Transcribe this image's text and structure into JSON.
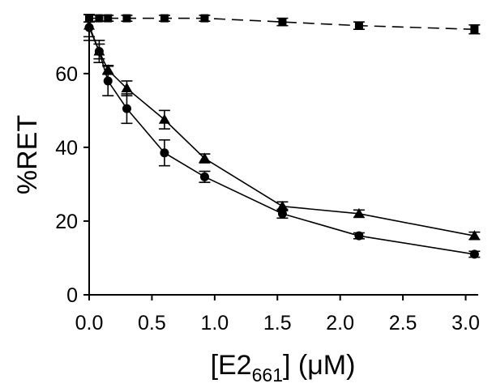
{
  "chart_data": {
    "type": "line",
    "xlabel": {
      "prefix": "[E2",
      "sub": "661",
      "suffix": "] (μM)"
    },
    "ylabel": "%RET",
    "xlim": [
      0,
      3.1
    ],
    "ylim": [
      0,
      76
    ],
    "x_ticks": [
      "0.0",
      "0.5",
      "1.0",
      "1.5",
      "2.0",
      "2.5",
      "3.0"
    ],
    "y_ticks": [
      "0",
      "20",
      "40",
      "60"
    ],
    "grid": false,
    "series": [
      {
        "marker": "square",
        "line": "dashed",
        "points": [
          {
            "x": 0.0,
            "y": 75,
            "err": 1.0
          },
          {
            "x": 0.08,
            "y": 75,
            "err": 0.8
          },
          {
            "x": 0.15,
            "y": 75,
            "err": 0.8
          },
          {
            "x": 0.3,
            "y": 75,
            "err": 0.8
          },
          {
            "x": 0.6,
            "y": 75,
            "err": 0.8
          },
          {
            "x": 0.92,
            "y": 75,
            "err": 0.8
          },
          {
            "x": 1.54,
            "y": 74,
            "err": 1.0
          },
          {
            "x": 2.15,
            "y": 73,
            "err": 1.0
          },
          {
            "x": 3.07,
            "y": 72,
            "err": 1.2
          }
        ]
      },
      {
        "marker": "triangle",
        "line": "solid",
        "points": [
          {
            "x": 0.0,
            "y": 73,
            "err": 3.0
          },
          {
            "x": 0.08,
            "y": 66,
            "err": 2.0
          },
          {
            "x": 0.15,
            "y": 61,
            "err": 1.2
          },
          {
            "x": 0.3,
            "y": 56,
            "err": 2.0
          },
          {
            "x": 0.6,
            "y": 47.5,
            "err": 2.5
          },
          {
            "x": 0.92,
            "y": 37,
            "err": 1.2
          },
          {
            "x": 1.54,
            "y": 24,
            "err": 1.2
          },
          {
            "x": 2.15,
            "y": 22,
            "err": 1.0
          },
          {
            "x": 3.07,
            "y": 16,
            "err": 1.0
          }
        ]
      },
      {
        "marker": "circle",
        "line": "solid",
        "points": [
          {
            "x": 0.0,
            "y": 72.5,
            "err": 3.5
          },
          {
            "x": 0.08,
            "y": 66,
            "err": 3.0
          },
          {
            "x": 0.15,
            "y": 58,
            "err": 4.0
          },
          {
            "x": 0.3,
            "y": 50.5,
            "err": 4.0
          },
          {
            "x": 0.6,
            "y": 38.5,
            "err": 3.5
          },
          {
            "x": 0.92,
            "y": 32,
            "err": 1.5
          },
          {
            "x": 1.54,
            "y": 22,
            "err": 1.2
          },
          {
            "x": 2.15,
            "y": 16,
            "err": 0.8
          },
          {
            "x": 3.07,
            "y": 11,
            "err": 0.8
          }
        ]
      }
    ],
    "colors": {
      "ink": "#000000"
    }
  }
}
